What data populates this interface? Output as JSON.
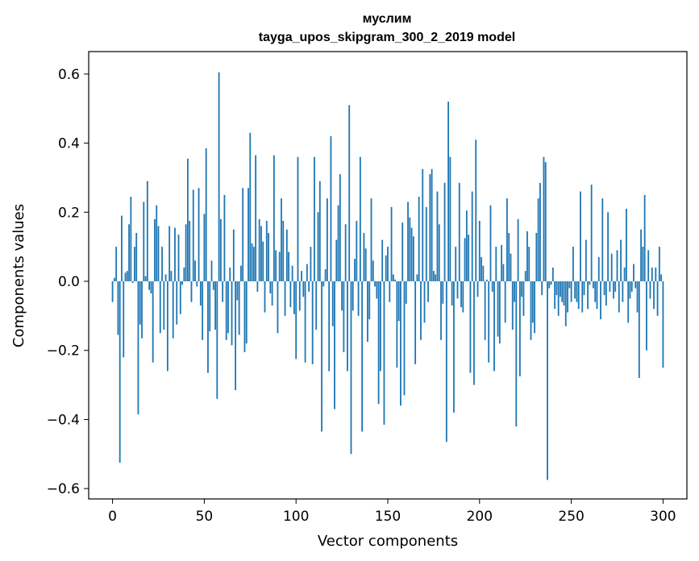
{
  "chart_data": {
    "type": "bar",
    "title": "муслим",
    "subtitle": "tayga_upos_skipgram_300_2_2019 model",
    "xlabel": "Vector components",
    "ylabel": "Components values",
    "xlim": [
      -13,
      313
    ],
    "ylim": [
      -0.63,
      0.665
    ],
    "xticks": [
      0,
      50,
      100,
      150,
      200,
      250,
      300
    ],
    "xtick_labels": [
      "0",
      "50",
      "100",
      "150",
      "200",
      "250",
      "300"
    ],
    "yticks": [
      -0.6,
      -0.4,
      -0.2,
      0.0,
      0.2,
      0.4,
      0.6
    ],
    "ytick_labels": [
      "−0.6",
      "−0.4",
      "−0.2",
      "0.0",
      "0.2",
      "0.4",
      "0.6"
    ],
    "bar_color": "#1f77b4",
    "grid": false,
    "x_start": 0,
    "values": [
      -0.06,
      0.01,
      0.1,
      -0.155,
      -0.525,
      0.19,
      -0.22,
      0.025,
      0.03,
      0.165,
      0.245,
      -0.005,
      0.1,
      0.14,
      -0.385,
      -0.125,
      -0.165,
      0.23,
      0.015,
      0.29,
      -0.025,
      -0.035,
      -0.235,
      0.18,
      0.22,
      0.16,
      -0.15,
      0.1,
      -0.14,
      0.02,
      -0.26,
      0.16,
      0.03,
      -0.165,
      0.155,
      -0.125,
      0.135,
      -0.095,
      -0.01,
      0.04,
      0.165,
      0.355,
      0.175,
      -0.06,
      0.265,
      0.06,
      -0.015,
      0.27,
      -0.07,
      -0.17,
      0.195,
      0.385,
      -0.265,
      -0.145,
      0.06,
      -0.025,
      -0.14,
      -0.34,
      0.605,
      0.18,
      -0.06,
      0.25,
      -0.17,
      -0.15,
      0.04,
      -0.185,
      0.15,
      -0.315,
      -0.055,
      -0.155,
      0.045,
      0.27,
      -0.205,
      -0.18,
      0.27,
      0.43,
      0.11,
      0.1,
      0.365,
      -0.03,
      0.18,
      0.16,
      0.115,
      -0.09,
      0.175,
      0.14,
      -0.035,
      -0.07,
      0.365,
      0.09,
      -0.15,
      0.085,
      0.24,
      0.175,
      -0.1,
      0.15,
      0.085,
      -0.075,
      0.045,
      -0.095,
      -0.225,
      0.36,
      -0.085,
      0.03,
      -0.045,
      -0.235,
      0.05,
      -0.03,
      0.1,
      -0.24,
      0.36,
      -0.14,
      0.2,
      0.29,
      -0.435,
      -0.015,
      0.035,
      0.24,
      -0.26,
      0.42,
      -0.13,
      -0.37,
      0.12,
      0.22,
      0.31,
      -0.085,
      -0.205,
      0.165,
      -0.26,
      0.51,
      -0.5,
      -0.085,
      0.065,
      0.175,
      -0.1,
      0.36,
      -0.435,
      0.14,
      0.095,
      -0.175,
      -0.11,
      0.24,
      0.06,
      -0.015,
      -0.05,
      -0.355,
      -0.26,
      0.12,
      -0.415,
      0.075,
      0.1,
      -0.06,
      0.215,
      0.02,
      0.005,
      -0.25,
      -0.115,
      -0.36,
      0.17,
      -0.33,
      -0.065,
      0.23,
      0.185,
      0.155,
      0.13,
      -0.24,
      0.02,
      0.245,
      -0.17,
      0.325,
      -0.12,
      0.215,
      -0.06,
      0.31,
      0.325,
      0.03,
      0.02,
      0.26,
      0.165,
      -0.17,
      -0.065,
      0.285,
      -0.465,
      0.52,
      0.36,
      -0.07,
      -0.38,
      0.1,
      -0.05,
      0.285,
      -0.075,
      -0.09,
      0.125,
      0.205,
      0.135,
      -0.265,
      0.26,
      -0.3,
      0.41,
      -0.045,
      0.175,
      0.07,
      0.045,
      -0.17,
      0.005,
      -0.235,
      0.22,
      -0.03,
      -0.26,
      0.1,
      -0.16,
      -0.18,
      0.105,
      0.05,
      -0.12,
      0.24,
      0.14,
      0.08,
      -0.14,
      -0.06,
      -0.42,
      0.18,
      -0.275,
      -0.045,
      -0.1,
      0.03,
      0.145,
      0.1,
      -0.17,
      -0.12,
      -0.15,
      0.14,
      0.24,
      0.285,
      -0.04,
      0.36,
      0.345,
      -0.575,
      -0.02,
      -0.01,
      0.04,
      -0.08,
      -0.04,
      -0.1,
      -0.045,
      -0.06,
      -0.07,
      -0.13,
      -0.09,
      -0.02,
      -0.06,
      0.1,
      -0.05,
      -0.06,
      -0.08,
      0.26,
      -0.09,
      -0.04,
      0.12,
      -0.08,
      -0.01,
      0.28,
      -0.02,
      -0.06,
      -0.08,
      0.07,
      -0.11,
      0.24,
      -0.04,
      -0.07,
      0.2,
      -0.03,
      0.08,
      -0.05,
      -0.03,
      0.09,
      -0.09,
      0.12,
      -0.06,
      0.04,
      0.21,
      -0.12,
      -0.05,
      -0.03,
      0.05,
      -0.02,
      -0.09,
      -0.28,
      0.15,
      0.1,
      0.25,
      -0.2,
      0.09,
      -0.05,
      0.04,
      -0.08,
      0.04,
      -0.1,
      0.1,
      0.02,
      -0.25
    ]
  }
}
